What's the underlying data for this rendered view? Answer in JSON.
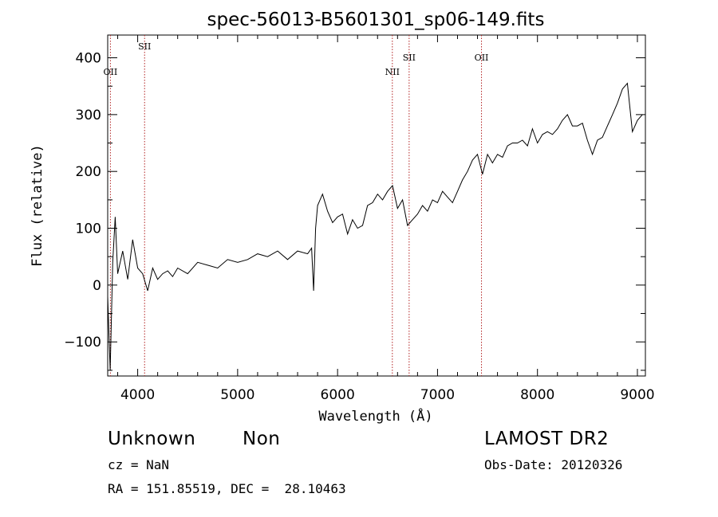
{
  "chart_data": {
    "type": "line",
    "title": "spec-56013-B5601301_sp06-149.fits",
    "xlabel": "Wavelength (Å)",
    "ylabel": "Flux (relative)",
    "xlim": [
      3700,
      9080
    ],
    "ylim": [
      -160,
      440
    ],
    "x_ticks": [
      4000,
      5000,
      6000,
      7000,
      8000,
      9000
    ],
    "y_ticks": [
      -100,
      0,
      100,
      200,
      300,
      400
    ],
    "grid": false,
    "series": [
      {
        "x": [
          3700,
          3725,
          3750,
          3775,
          3800,
          3850,
          3900,
          3950,
          4000,
          4050,
          4100,
          4150,
          4200,
          4250,
          4300,
          4350,
          4400,
          4500,
          4600,
          4700,
          4800,
          4900,
          5000,
          5100,
          5200,
          5300,
          5400,
          5500,
          5600,
          5700,
          5740,
          5760,
          5780,
          5800,
          5850,
          5900,
          5950,
          6000,
          6050,
          6100,
          6150,
          6200,
          6250,
          6300,
          6350,
          6400,
          6450,
          6500,
          6550,
          6600,
          6650,
          6700,
          6750,
          6800,
          6850,
          6900,
          6950,
          7000,
          7050,
          7100,
          7150,
          7200,
          7250,
          7300,
          7350,
          7400,
          7450,
          7500,
          7550,
          7600,
          7650,
          7700,
          7750,
          7800,
          7850,
          7900,
          7950,
          8000,
          8050,
          8100,
          8150,
          8200,
          8250,
          8300,
          8350,
          8400,
          8450,
          8500,
          8550,
          8600,
          8650,
          8700,
          8750,
          8800,
          8850,
          8900,
          8950,
          9000,
          9050
        ],
        "y": [
          -20,
          -150,
          40,
          120,
          20,
          60,
          10,
          80,
          30,
          20,
          -10,
          30,
          10,
          20,
          25,
          15,
          30,
          20,
          40,
          35,
          30,
          45,
          40,
          45,
          55,
          50,
          60,
          45,
          60,
          55,
          65,
          -10,
          100,
          140,
          160,
          130,
          110,
          120,
          125,
          90,
          115,
          100,
          105,
          140,
          145,
          160,
          150,
          165,
          175,
          135,
          150,
          105,
          115,
          125,
          140,
          130,
          150,
          145,
          165,
          155,
          145,
          165,
          185,
          200,
          220,
          230,
          195,
          230,
          215,
          230,
          225,
          245,
          250,
          250,
          255,
          245,
          275,
          250,
          265,
          270,
          265,
          275,
          290,
          300,
          280,
          280,
          285,
          255,
          230,
          255,
          260,
          280,
          300,
          320,
          345,
          355,
          270,
          290,
          300
        ],
        "color": "#000000"
      }
    ],
    "annotations": [
      {
        "label": "OII",
        "x": 3727,
        "y": 370
      },
      {
        "label": "SII",
        "x": 4069,
        "y": 415
      },
      {
        "label": "NII",
        "x": 6548,
        "y": 370
      },
      {
        "label": "SII",
        "x": 6716,
        "y": 395
      },
      {
        "label": "OII",
        "x": 7440,
        "y": 395
      }
    ],
    "line_markers_x": [
      3727,
      4069,
      6548,
      6716,
      7440
    ],
    "marker_color": "#b22222"
  },
  "info": {
    "class_text": "Unknown",
    "subclass_text": "Non",
    "cz_text": "cz = NaN",
    "coords_text": "RA = 151.85519, DEC =  28.10463",
    "survey_text": "LAMOST DR2",
    "obsdate_text": "Obs-Date: 20120326"
  }
}
